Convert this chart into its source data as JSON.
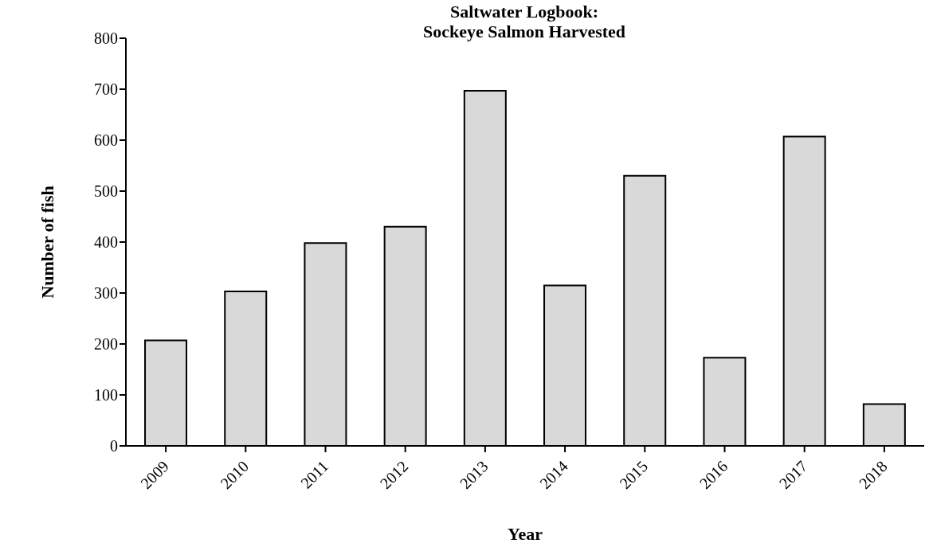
{
  "chart_data": {
    "type": "bar",
    "title": "Saltwater Logbook:\nSockeye Salmon Harvested",
    "xlabel": "Year",
    "ylabel": "Number of fish",
    "categories": [
      "2009",
      "2010",
      "2011",
      "2012",
      "2013",
      "2014",
      "2015",
      "2016",
      "2017",
      "2018"
    ],
    "values": [
      207,
      303,
      398,
      430,
      697,
      315,
      530,
      173,
      607,
      82
    ],
    "color": "#d9d9d9",
    "ylim": [
      0,
      800
    ],
    "yticks": [
      0,
      100,
      200,
      300,
      400,
      500,
      600,
      700,
      800
    ],
    "grid": false,
    "legend": false
  }
}
